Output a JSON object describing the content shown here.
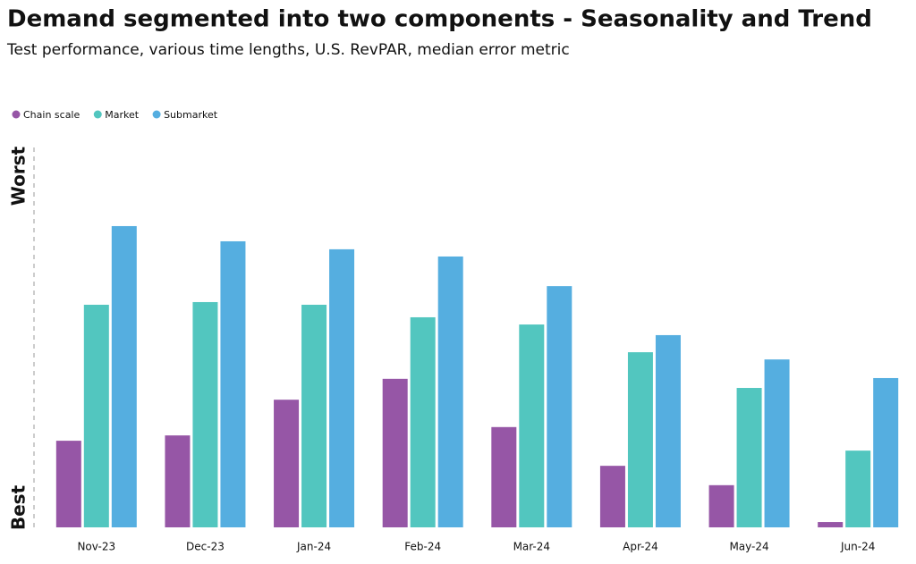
{
  "chart_data": {
    "type": "bar",
    "title": "Demand segmented into two components - Seasonality and Trend",
    "subtitle": "Test performance, various time lengths, U.S. RevPAR, median error metric",
    "ylabel_top": "Worst",
    "ylabel_bottom": "Best",
    "categories": [
      "Nov-23",
      "Dec-23",
      "Jan-24",
      "Feb-24",
      "Mar-24",
      "Apr-24",
      "May-24",
      "Jun-24"
    ],
    "series": [
      {
        "name": "Chain scale",
        "color": "#9656a6",
        "values": [
          22.8,
          24.2,
          33.6,
          39.1,
          26.4,
          16.2,
          11.1,
          1.4
        ]
      },
      {
        "name": "Market",
        "color": "#52c6bf",
        "values": [
          58.6,
          59.3,
          58.6,
          55.3,
          53.4,
          46.1,
          36.7,
          20.2
        ]
      },
      {
        "name": "Submarket",
        "color": "#55aee0",
        "values": [
          79.3,
          75.3,
          73.2,
          71.3,
          63.5,
          50.6,
          44.2,
          39.3
        ]
      }
    ],
    "ylim": [
      0,
      100
    ],
    "legend": "top-left"
  }
}
